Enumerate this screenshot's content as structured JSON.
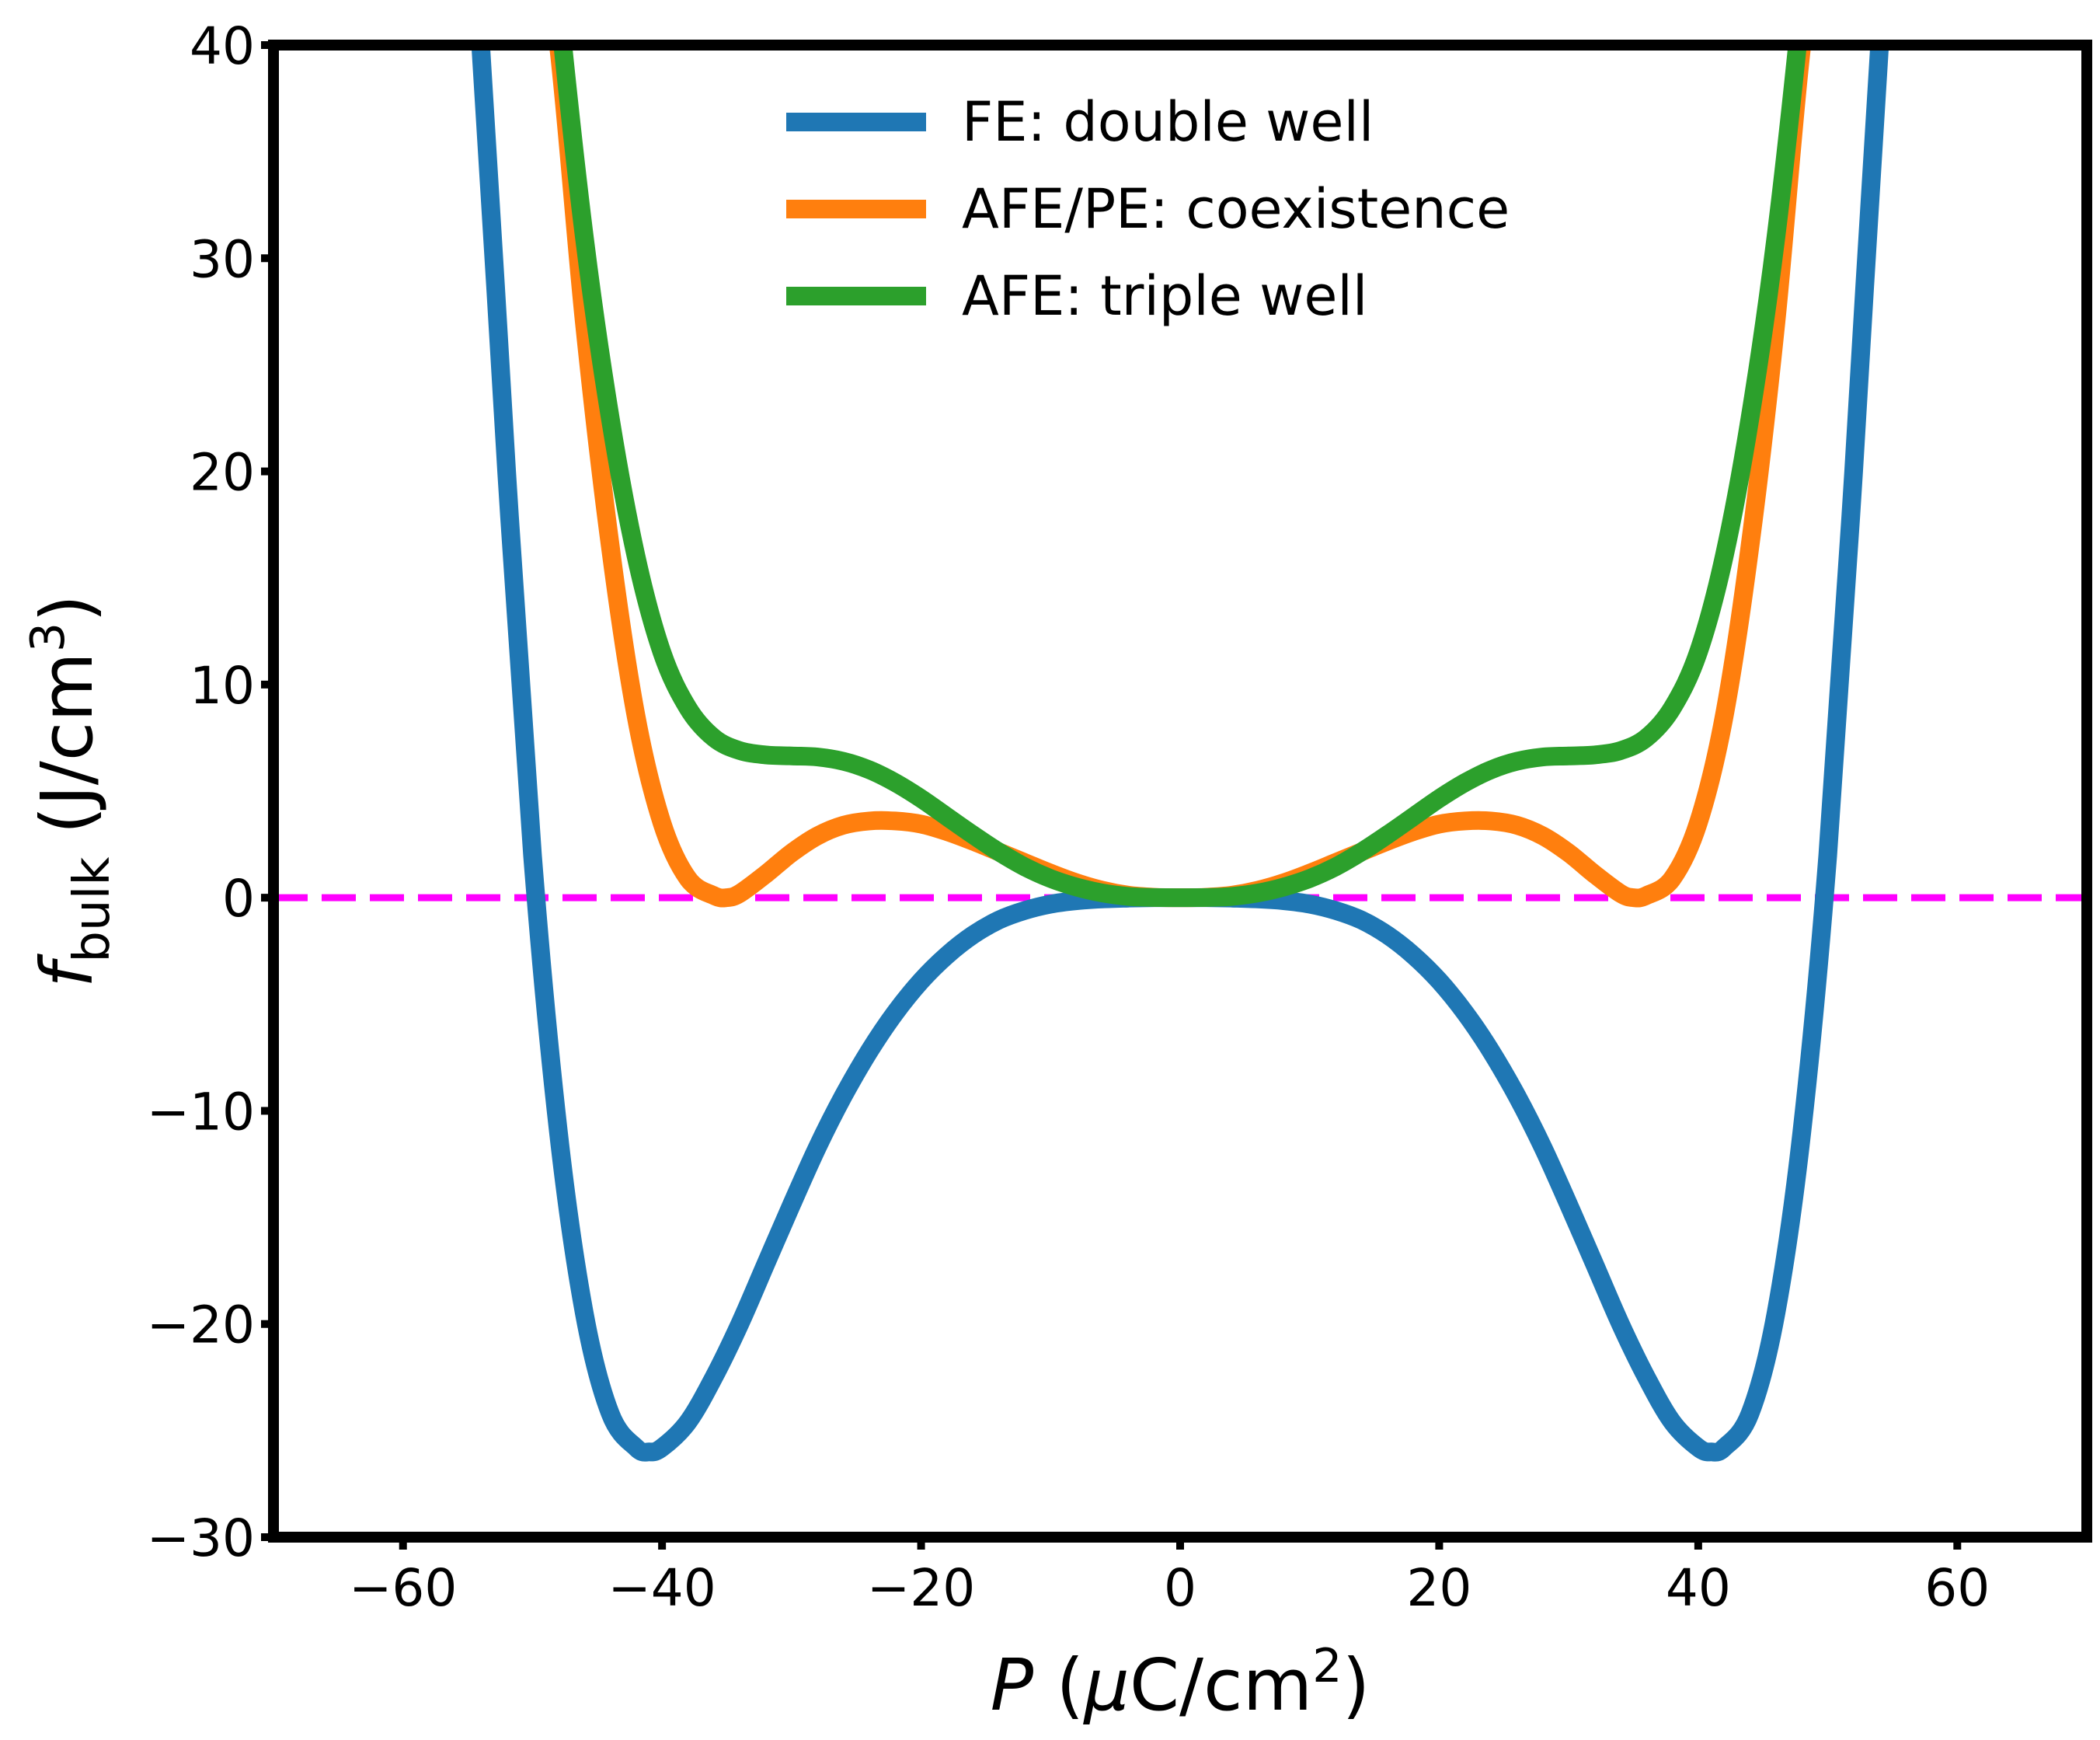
{
  "chart_data": {
    "type": "line",
    "title": "",
    "xlabel": {
      "symbol": "P",
      "open": " (",
      "unit_prefix": "μ",
      "unit": "C/cm",
      "exp": "2",
      "close": ")"
    },
    "ylabel": {
      "symbol": "f",
      "sub": "bulk",
      "unit": " (J/cm",
      "exp": "3",
      "close": ")"
    },
    "xlim": [
      -70,
      70
    ],
    "ylim": [
      -30,
      40
    ],
    "xticks": [
      {
        "v": -60,
        "label": "−60"
      },
      {
        "v": -40,
        "label": "−40"
      },
      {
        "v": -20,
        "label": "−20"
      },
      {
        "v": 0,
        "label": "0"
      },
      {
        "v": 20,
        "label": "20"
      },
      {
        "v": 40,
        "label": "40"
      },
      {
        "v": 60,
        "label": "60"
      }
    ],
    "yticks": [
      {
        "v": -30,
        "label": "−30"
      },
      {
        "v": -20,
        "label": "−20"
      },
      {
        "v": -10,
        "label": "−10"
      },
      {
        "v": 0,
        "label": "0"
      },
      {
        "v": 10,
        "label": "10"
      },
      {
        "v": 20,
        "label": "20"
      },
      {
        "v": 30,
        "label": "30"
      },
      {
        "v": 40,
        "label": "40"
      }
    ],
    "legend_position": "top-center",
    "grid": false,
    "series": [
      {
        "name": "FE: double well",
        "color": "#1f77b4",
        "x": [
          -56,
          -54,
          -52,
          -50,
          -48,
          -46,
          -44,
          -42,
          -41,
          -40,
          -38,
          -36,
          -34,
          -32,
          -30,
          -28,
          -26,
          -24,
          -22,
          -20,
          -18,
          -16,
          -14,
          -12,
          -10,
          -8,
          -6,
          -4,
          -2,
          0,
          2,
          4,
          6,
          8,
          10,
          12,
          14,
          16,
          18,
          20,
          22,
          24,
          26,
          28,
          30,
          32,
          34,
          36,
          38,
          40,
          41,
          42,
          44,
          46,
          48,
          50,
          52,
          54,
          56
        ],
        "y": [
          55,
          40,
          20,
          2,
          -11,
          -19.5,
          -24.2,
          -25.8,
          -26,
          -25.8,
          -24.6,
          -22.5,
          -20,
          -17.2,
          -14.4,
          -11.7,
          -9.3,
          -7.2,
          -5.4,
          -3.9,
          -2.7,
          -1.75,
          -1.05,
          -0.6,
          -0.3,
          -0.14,
          -0.06,
          -0.02,
          0,
          0,
          0,
          -0.02,
          -0.06,
          -0.14,
          -0.3,
          -0.6,
          -1.05,
          -1.75,
          -2.7,
          -3.9,
          -5.4,
          -7.2,
          -9.3,
          -11.7,
          -14.4,
          -17.2,
          -20,
          -22.5,
          -24.6,
          -25.8,
          -26,
          -25.8,
          -24.2,
          -19.5,
          -11,
          2,
          20,
          40,
          55
        ]
      },
      {
        "name": "AFE/PE: coexistence",
        "color": "#ff7f0e",
        "x": [
          -50,
          -48,
          -46,
          -44,
          -42,
          -40,
          -38,
          -36,
          -35,
          -34,
          -32,
          -30,
          -28,
          -26,
          -24,
          -22,
          -20,
          -18,
          -16,
          -14,
          -12,
          -10,
          -8,
          -6,
          -4,
          -2,
          0,
          2,
          4,
          6,
          8,
          10,
          12,
          14,
          16,
          18,
          20,
          22,
          24,
          26,
          28,
          30,
          32,
          34,
          35,
          36,
          38,
          40,
          42,
          44,
          46,
          48,
          50
        ],
        "y": [
          48,
          40,
          27,
          16.5,
          8.5,
          3.5,
          0.9,
          0.1,
          0,
          0.2,
          1.1,
          2.1,
          2.9,
          3.4,
          3.6,
          3.6,
          3.45,
          3.1,
          2.65,
          2.15,
          1.65,
          1.15,
          0.7,
          0.35,
          0.12,
          0.02,
          0,
          0.02,
          0.12,
          0.35,
          0.7,
          1.15,
          1.65,
          2.15,
          2.65,
          3.1,
          3.45,
          3.6,
          3.6,
          3.4,
          2.9,
          2.1,
          1.1,
          0.2,
          0,
          0.1,
          0.9,
          3.5,
          8.5,
          16.5,
          27,
          40,
          48
        ]
      },
      {
        "name": "AFE: triple well",
        "color": "#2ca02c",
        "x": [
          -50,
          -48,
          -46,
          -44,
          -42,
          -40,
          -38,
          -36,
          -34,
          -32,
          -30,
          -28,
          -26,
          -24,
          -22,
          -20,
          -18,
          -16,
          -14,
          -12,
          -10,
          -8,
          -6,
          -4,
          -2,
          0,
          2,
          4,
          6,
          8,
          10,
          12,
          14,
          16,
          18,
          20,
          22,
          24,
          26,
          28,
          30,
          32,
          34,
          36,
          38,
          40,
          42,
          44,
          46,
          48,
          50
        ],
        "y": [
          55,
          42,
          31,
          22.5,
          16,
          11.5,
          8.9,
          7.5,
          6.9,
          6.7,
          6.65,
          6.6,
          6.4,
          6.0,
          5.4,
          4.65,
          3.8,
          2.95,
          2.15,
          1.45,
          0.9,
          0.5,
          0.22,
          0.06,
          0.01,
          0,
          0.01,
          0.06,
          0.22,
          0.5,
          0.9,
          1.45,
          2.15,
          2.95,
          3.8,
          4.65,
          5.4,
          6.0,
          6.4,
          6.6,
          6.65,
          6.7,
          6.9,
          7.5,
          8.9,
          11.5,
          16,
          22.5,
          31,
          42,
          55
        ]
      }
    ],
    "reference_line": {
      "y": 0,
      "color": "#ff00ff",
      "style": "dashed"
    }
  }
}
